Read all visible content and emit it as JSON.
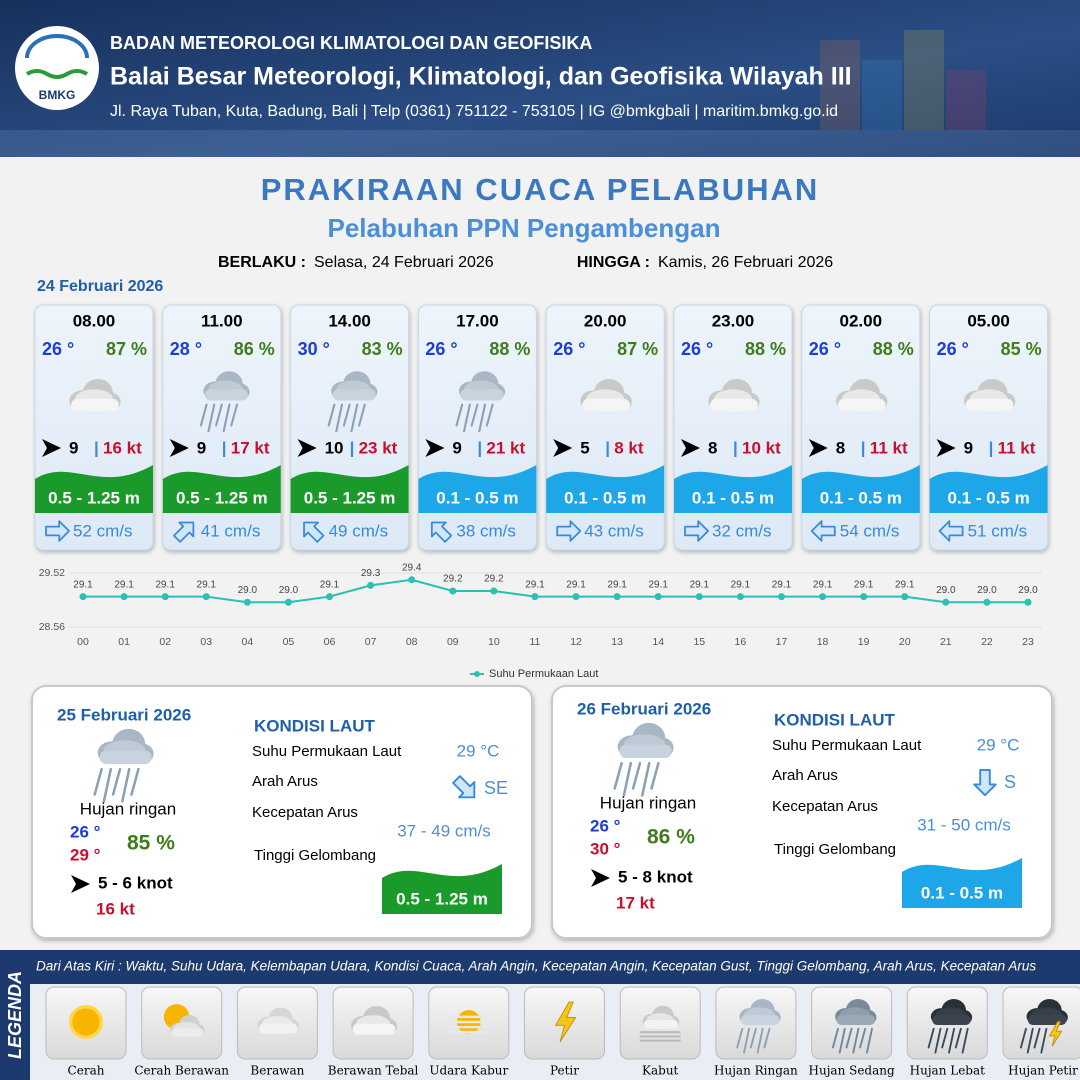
{
  "header": {
    "logo": "BMKG",
    "agency": "BADAN METEOROLOGI KLIMATOLOGI DAN GEOFISIKA",
    "office": "Balai Besar Meteorologi, Klimatologi, dan Geofisika Wilayah III",
    "contact": "Jl. Raya Tuban, Kuta, Badung, Bali | Telp (0361) 751122 - 753105 | IG @bmkgbali | maritim.bmkg.go.id"
  },
  "title": "PRAKIRAAN CUACA PELABUHAN",
  "subtitle": "Pelabuhan PPN Pengambengan",
  "validity": {
    "from_label": "BERLAKU :",
    "from": "Selasa, 24 Februari 2026",
    "to_label": "HINGGA :",
    "to": "Kamis, 26 Februari 2026"
  },
  "day1": {
    "date": "24 Februari 2026",
    "slots": [
      {
        "time": "08.00",
        "temp": "26 °",
        "humidity": "87 %",
        "icon": "cloud-thick",
        "wind": 9,
        "gust": "16 kt",
        "wave": "0.5 - 1.25 m",
        "wave_color": "#1a9a2a",
        "current_arrow": "right",
        "current": "52 cm/s"
      },
      {
        "time": "11.00",
        "temp": "28 °",
        "humidity": "86 %",
        "icon": "rain-light",
        "wind": 9,
        "gust": "17 kt",
        "wave": "0.5 - 1.25 m",
        "wave_color": "#1a9a2a",
        "current_arrow": "up-right",
        "current": "41 cm/s"
      },
      {
        "time": "14.00",
        "temp": "30 °",
        "humidity": "83 %",
        "icon": "rain-light",
        "wind": 10,
        "gust": "23 kt",
        "wave": "0.5 - 1.25 m",
        "wave_color": "#1a9a2a",
        "current_arrow": "up-left",
        "current": "49 cm/s"
      },
      {
        "time": "17.00",
        "temp": "26 °",
        "humidity": "88 %",
        "icon": "rain-light",
        "wind": 9,
        "gust": "21 kt",
        "wave": "0.1 - 0.5 m",
        "wave_color": "#1ea7e8",
        "current_arrow": "up-left",
        "current": "38 cm/s"
      },
      {
        "time": "20.00",
        "temp": "26 °",
        "humidity": "87 %",
        "icon": "cloud-thick",
        "wind": 5,
        "gust": "8 kt",
        "wave": "0.1 - 0.5 m",
        "wave_color": "#1ea7e8",
        "current_arrow": "right",
        "current": "43 cm/s"
      },
      {
        "time": "23.00",
        "temp": "26 °",
        "humidity": "88 %",
        "icon": "cloud-thick",
        "wind": 8,
        "gust": "10 kt",
        "wave": "0.1 - 0.5 m",
        "wave_color": "#1ea7e8",
        "current_arrow": "right",
        "current": "32 cm/s"
      },
      {
        "time": "02.00",
        "temp": "26 °",
        "humidity": "88 %",
        "icon": "cloud-thick",
        "wind": 8,
        "gust": "11 kt",
        "wave": "0.1 - 0.5 m",
        "wave_color": "#1ea7e8",
        "current_arrow": "left",
        "current": "54 cm/s"
      },
      {
        "time": "05.00",
        "temp": "26 °",
        "humidity": "85 %",
        "icon": "cloud-thick",
        "wind": 9,
        "gust": "11 kt",
        "wave": "0.1 - 0.5 m",
        "wave_color": "#1ea7e8",
        "current_arrow": "left",
        "current": "51 cm/s"
      }
    ]
  },
  "chart_data": {
    "type": "line",
    "categories": [
      "00",
      "01",
      "02",
      "03",
      "04",
      "05",
      "06",
      "07",
      "08",
      "09",
      "10",
      "11",
      "12",
      "13",
      "14",
      "15",
      "16",
      "17",
      "18",
      "19",
      "20",
      "21",
      "22",
      "23"
    ],
    "series": [
      {
        "name": "Suhu Permukaan Laut",
        "color": "#2bc0b4",
        "values": [
          29.1,
          29.1,
          29.1,
          29.1,
          29.0,
          29.0,
          29.1,
          29.3,
          29.4,
          29.2,
          29.2,
          29.1,
          29.1,
          29.1,
          29.1,
          29.1,
          29.1,
          29.1,
          29.1,
          29.1,
          29.1,
          29.0,
          29.0,
          29.0
        ],
        "value_labels": [
          "29.1",
          "29.1",
          "29.1",
          "29.1",
          "29.0",
          "29.0",
          "29.1",
          "29.3",
          "29.4",
          "29.2",
          "29.2",
          "29.1",
          "29.1",
          "29.1",
          "29.1",
          "29.1",
          "29.1",
          "29.1",
          "29.1",
          "29.1",
          "29.1",
          "29.0",
          "29.0",
          "29.0"
        ]
      }
    ],
    "ylim": [
      28.56,
      29.52
    ],
    "yticks": [
      28.56,
      29.52
    ],
    "grid": true,
    "legend": "bottom"
  },
  "days": [
    {
      "date": "25 Februari 2026",
      "icon": "rain-light",
      "weather": "Hujan ringan",
      "temp_min": "26 °",
      "temp_max": "29 °",
      "humidity": "85 %",
      "wind": "5 - 6 knot",
      "gust": "16 kt",
      "sea_title": "KONDISI LAUT",
      "sst_label": "Suhu Permukaan Laut",
      "sst": "29 °C",
      "dir_label": "Arah Arus",
      "current_arrow": "down-right",
      "dir": "SE",
      "speed_label": "Kecepatan Arus",
      "speed": "37 - 49 cm/s",
      "wave_label": "Tinggi Gelombang",
      "wave": "0.5 - 1.25 m",
      "wave_color": "#1a9a2a"
    },
    {
      "date": "26 Februari 2026",
      "icon": "rain-light",
      "weather": "Hujan ringan",
      "temp_min": "26 °",
      "temp_max": "30 °",
      "humidity": "86 %",
      "wind": "5 - 8 knot",
      "gust": "17 kt",
      "sea_title": "KONDISI LAUT",
      "sst_label": "Suhu Permukaan Laut",
      "sst": "29 °C",
      "dir_label": "Arah Arus",
      "current_arrow": "down",
      "dir": "S",
      "speed_label": "Kecepatan Arus",
      "speed": "31 - 50 cm/s",
      "wave_label": "Tinggi Gelombang",
      "wave": "0.1 - 0.5 m",
      "wave_color": "#1ea7e8"
    }
  ],
  "legend": {
    "title": "LEGENDA",
    "description": "Dari Atas Kiri : Waktu, Suhu Udara, Kelembapan Udara, Kondisi Cuaca, Arah Angin, Kecepatan Angin, Kecepatan Gust, Tinggi Gelombang, Arah Arus, Kecepatan Arus",
    "items": [
      {
        "name": "Cerah",
        "icon": "sun"
      },
      {
        "name": "Cerah Berawan",
        "icon": "sun-cloud"
      },
      {
        "name": "Berawan",
        "icon": "cloud"
      },
      {
        "name": "Berawan Tebal",
        "icon": "cloud-thick"
      },
      {
        "name": "Udara Kabur",
        "icon": "haze"
      },
      {
        "name": "Petir",
        "icon": "lightning"
      },
      {
        "name": "Kabut",
        "icon": "fog"
      },
      {
        "name": "Hujan Ringan",
        "icon": "rain-light"
      },
      {
        "name": "Hujan Sedang",
        "icon": "rain-medium"
      },
      {
        "name": "Hujan Lebat",
        "icon": "rain-heavy"
      },
      {
        "name": "Hujan Petir",
        "icon": "rain-thunder"
      }
    ]
  }
}
